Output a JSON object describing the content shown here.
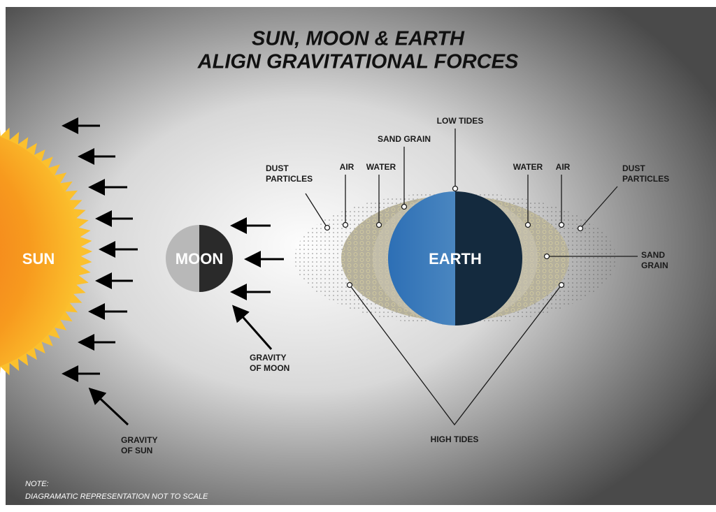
{
  "title": [
    "SUN, MOON & EARTH",
    "ALIGN GRAVITATIONAL FORCES"
  ],
  "bodies": {
    "sun": "SUN",
    "moon": "MOON",
    "earth": "EARTH"
  },
  "labels": {
    "low_tides": "LOW TIDES",
    "sand_grain_top": "SAND GRAIN",
    "air_left": "AIR",
    "water_left": "WATER",
    "dust_left": [
      "DUST",
      "PARTICLES"
    ],
    "water_right": "WATER",
    "air_right": "AIR",
    "dust_right": [
      "DUST",
      "PARTICLES"
    ],
    "sand_grain_right": [
      "SAND",
      "GRAIN"
    ],
    "high_tides": "HIGH TIDES",
    "gravity_moon": [
      "GRAVITY",
      "OF MOON"
    ],
    "gravity_sun": [
      "GRAVITY",
      "OF SUN"
    ]
  },
  "note": [
    "NOTE:",
    "DIAGRAMATIC REPRESENTATION NOT TO SCALE"
  ]
}
